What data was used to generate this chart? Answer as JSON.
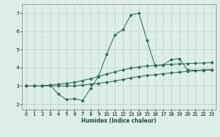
{
  "xlabel": "Humidex (Indice chaleur)",
  "ylabel": "",
  "bg_color": "#ddeee8",
  "grid_color": "#b8d8cc",
  "line_color": "#2d6e5e",
  "xlim": [
    -0.5,
    23.5
  ],
  "ylim": [
    1.7,
    7.5
  ],
  "xticks": [
    0,
    1,
    2,
    3,
    4,
    5,
    6,
    7,
    8,
    9,
    10,
    11,
    12,
    13,
    14,
    15,
    16,
    17,
    18,
    19,
    20,
    21,
    22,
    23
  ],
  "yticks": [
    2,
    3,
    4,
    5,
    6,
    7
  ],
  "series": [
    {
      "x": [
        0,
        1,
        2,
        3,
        4,
        5,
        6,
        7,
        8,
        9,
        10,
        11,
        12,
        13,
        14,
        15,
        16,
        17,
        18,
        19,
        20,
        21,
        22,
        23
      ],
      "y": [
        3.0,
        3.0,
        3.0,
        3.0,
        3.0,
        3.0,
        3.0,
        3.05,
        3.1,
        3.15,
        3.2,
        3.28,
        3.35,
        3.45,
        3.52,
        3.58,
        3.62,
        3.67,
        3.72,
        3.76,
        3.8,
        3.83,
        3.86,
        3.88
      ]
    },
    {
      "x": [
        0,
        1,
        2,
        3,
        4,
        5,
        6,
        7,
        8,
        9,
        10,
        11,
        12,
        13,
        14,
        15,
        16,
        17,
        18,
        19,
        20,
        21,
        22,
        23
      ],
      "y": [
        3.0,
        3.0,
        3.0,
        3.05,
        3.1,
        3.15,
        3.2,
        3.3,
        3.4,
        3.52,
        3.65,
        3.78,
        3.88,
        3.98,
        4.05,
        4.1,
        4.13,
        4.16,
        4.19,
        4.21,
        4.23,
        4.25,
        4.27,
        4.28
      ]
    },
    {
      "x": [
        0,
        1,
        2,
        3,
        4,
        5,
        6,
        7,
        8,
        9,
        10,
        11,
        12,
        13,
        14,
        15,
        16,
        17,
        18,
        19,
        20,
        21,
        22,
        23
      ],
      "y": [
        3.0,
        3.0,
        3.0,
        3.05,
        2.55,
        2.25,
        2.3,
        2.2,
        2.85,
        3.55,
        4.75,
        5.8,
        6.1,
        6.9,
        7.0,
        5.5,
        4.1,
        4.15,
        4.45,
        4.5,
        3.9,
        3.85,
        3.88,
        3.9
      ]
    }
  ]
}
